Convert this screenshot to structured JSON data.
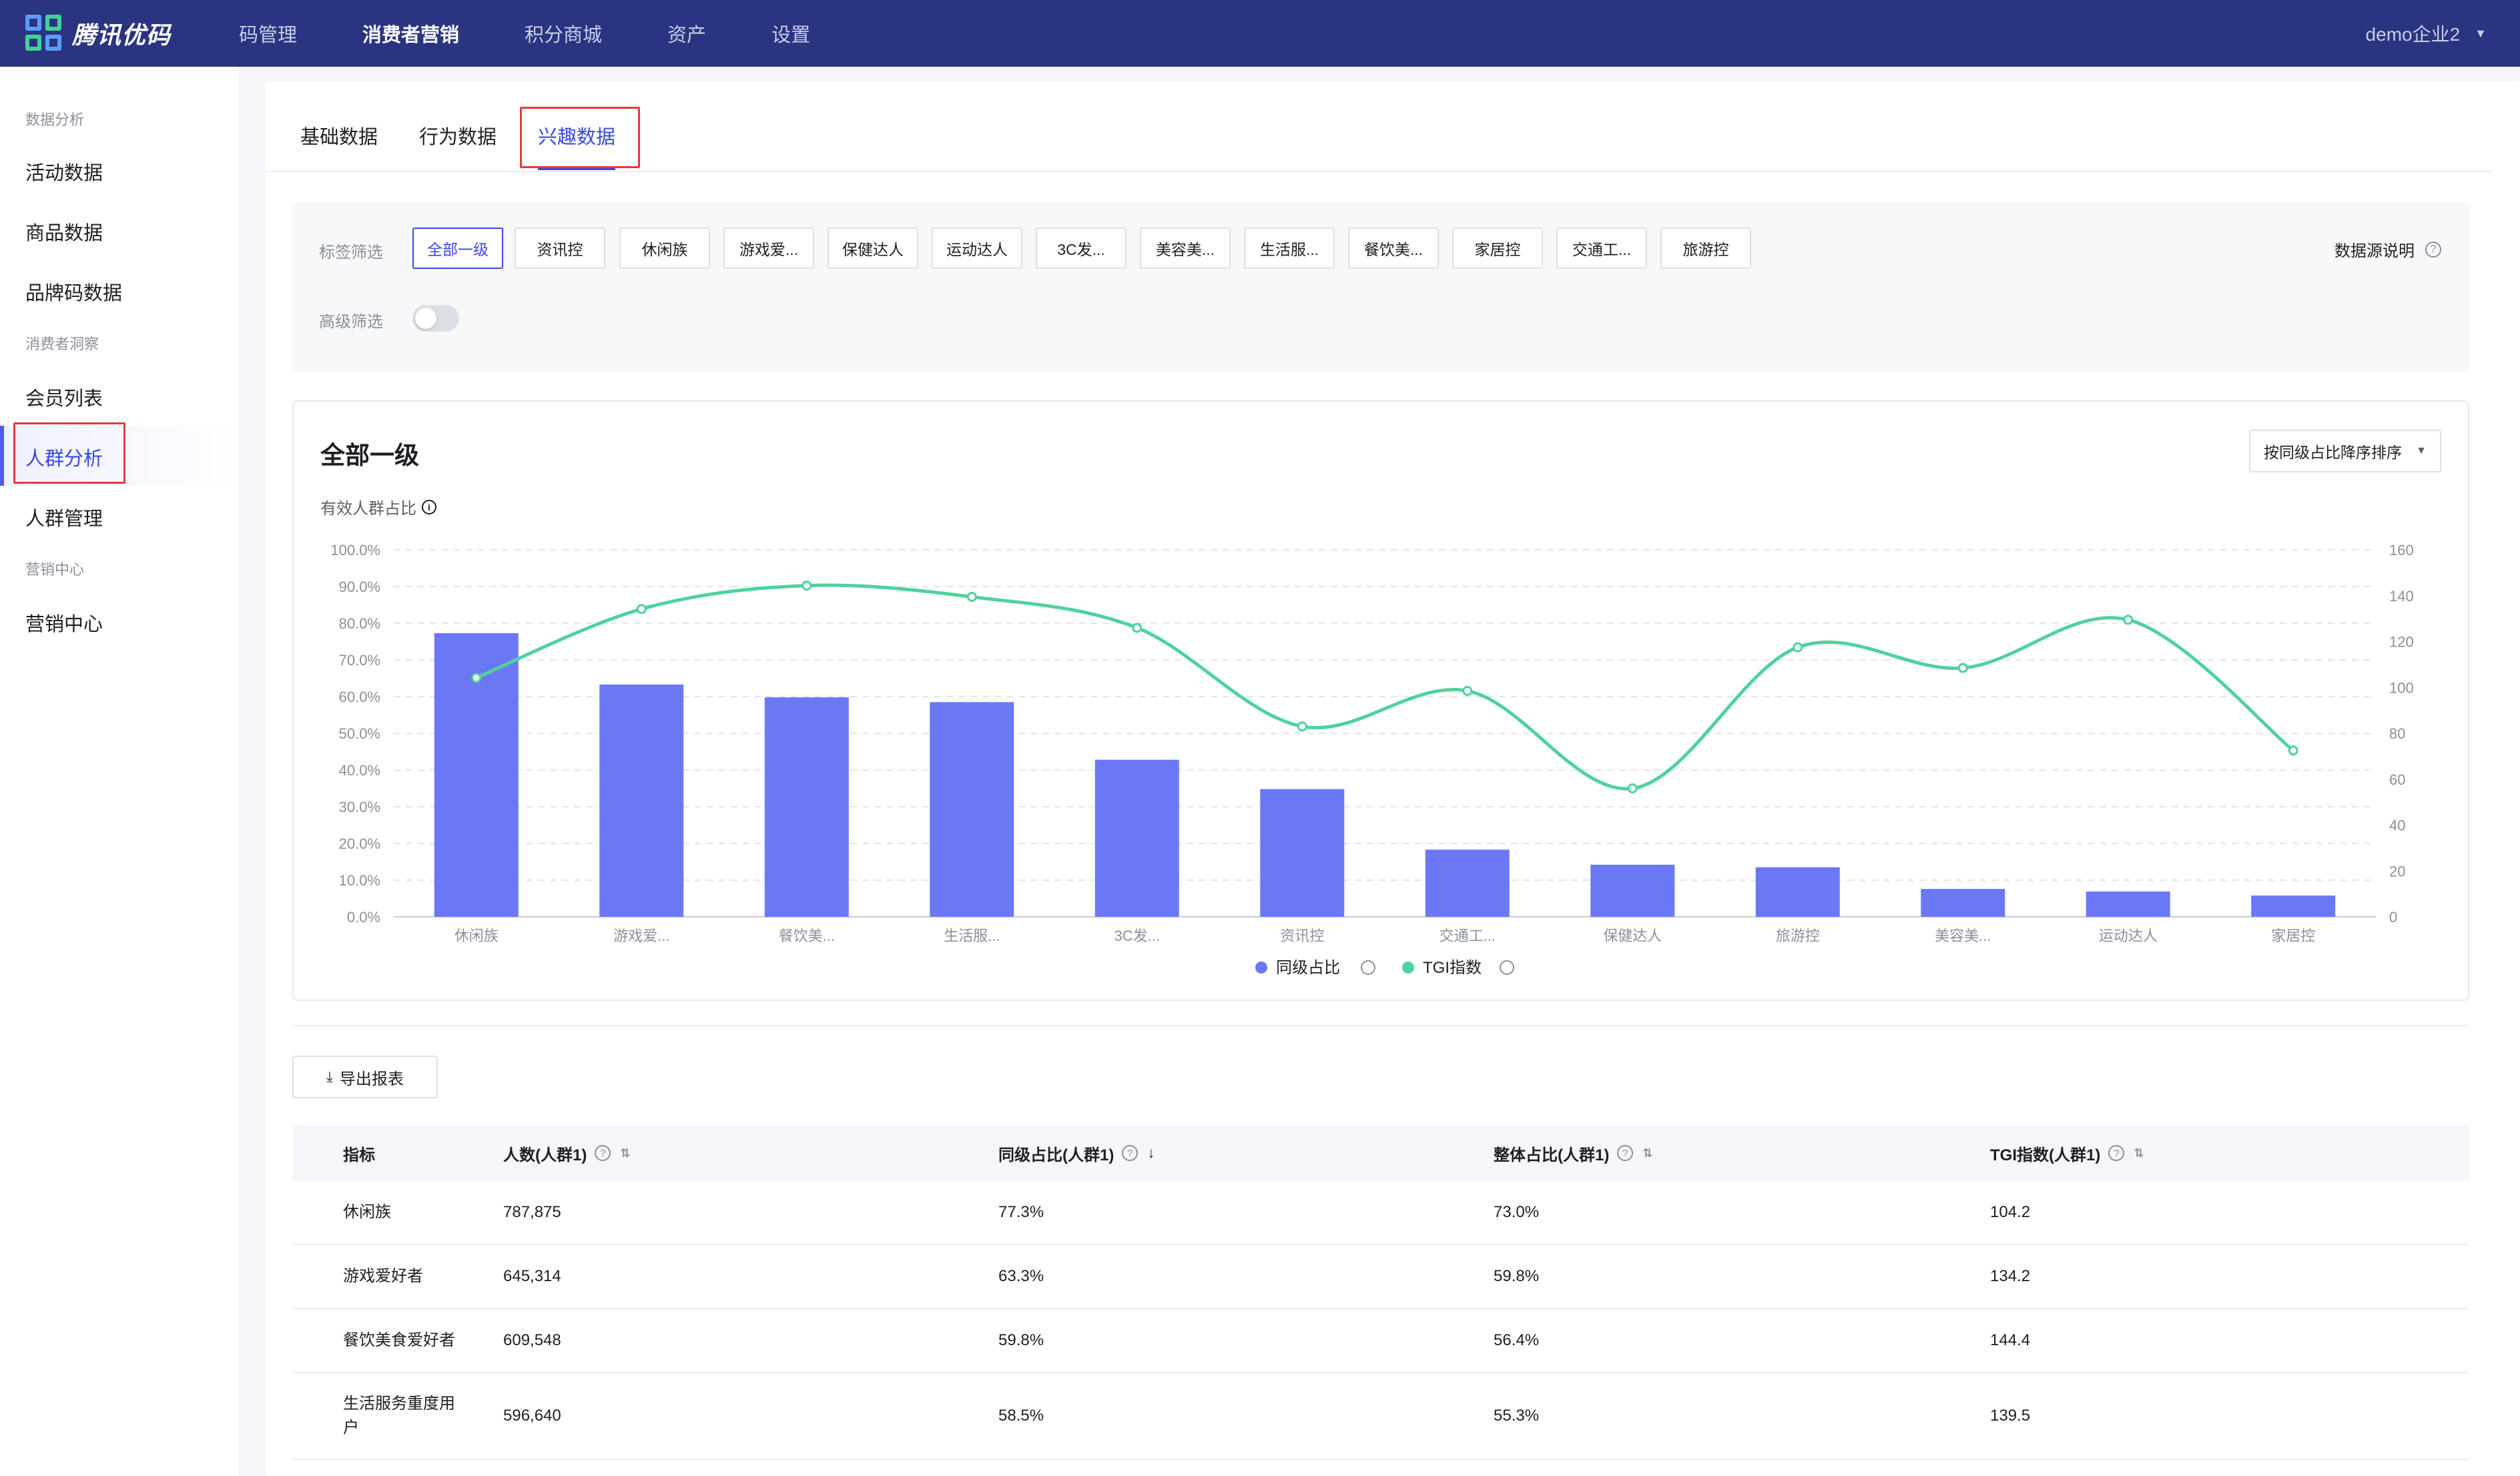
{
  "app": {
    "logo_text": "腾讯优码"
  },
  "topnav": {
    "items": [
      {
        "label": "码管理",
        "active": false
      },
      {
        "label": "消费者营销",
        "active": true
      },
      {
        "label": "积分商城",
        "active": false
      },
      {
        "label": "资产",
        "active": false
      },
      {
        "label": "设置",
        "active": false
      }
    ],
    "user": "demo企业2"
  },
  "sidebar": {
    "groups": [
      {
        "title": "数据分析",
        "items": [
          "活动数据",
          "商品数据",
          "品牌码数据"
        ]
      },
      {
        "title": "消费者洞察",
        "items": [
          "会员列表",
          "人群分析",
          "人群管理"
        ]
      },
      {
        "title": "营销中心",
        "items": [
          "营销中心"
        ]
      }
    ],
    "active_item": "人群分析"
  },
  "tabs": [
    {
      "label": "基础数据",
      "active": false
    },
    {
      "label": "行为数据",
      "active": false
    },
    {
      "label": "兴趣数据",
      "active": true
    }
  ],
  "filter": {
    "tag_label": "标签筛选",
    "chips": [
      "全部一级",
      "资讯控",
      "休闲族",
      "游戏爱...",
      "保健达人",
      "运动达人",
      "3C发...",
      "美容美...",
      "生活服...",
      "餐饮美...",
      "家居控",
      "交通工...",
      "旅游控"
    ],
    "active_chip": "全部一级",
    "advanced_label": "高级筛选",
    "advanced_on": false,
    "datasource_label": "数据源说明"
  },
  "chart_card": {
    "title": "全部一级",
    "sort_label": "按同级占比降序排序",
    "subtitle": "有效人群占比"
  },
  "chart_data": {
    "type": "bar",
    "categories": [
      "休闲族",
      "游戏爱...",
      "餐饮美...",
      "生活服...",
      "3C发...",
      "资讯控",
      "交通工...",
      "保健达人",
      "旅游控",
      "美容美...",
      "运动达人",
      "家居控"
    ],
    "series": [
      {
        "name": "同级占比",
        "type": "bar",
        "axis": "left",
        "color": "#6b78f5",
        "values": [
          77.3,
          63.3,
          59.8,
          58.5,
          42.8,
          34.8,
          18.3,
          14.2,
          13.5,
          7.6,
          6.9,
          5.8
        ]
      },
      {
        "name": "TGI指数",
        "type": "line",
        "axis": "right",
        "color": "#4fd29c",
        "values": [
          104.2,
          134.2,
          144.4,
          139.5,
          126.0,
          83.0,
          98.5,
          56.0,
          117.5,
          108.5,
          129.5,
          72.5
        ]
      }
    ],
    "y_left": {
      "ylim": [
        0,
        100
      ],
      "ticks": [
        "0.0%",
        "10.0%",
        "20.0%",
        "30.0%",
        "40.0%",
        "50.0%",
        "60.0%",
        "70.0%",
        "80.0%",
        "90.0%",
        "100.0%"
      ]
    },
    "y_right": {
      "ylim": [
        0,
        160
      ],
      "ticks": [
        "0",
        "20",
        "40",
        "60",
        "80",
        "100",
        "120",
        "140",
        "160"
      ]
    },
    "grid": true,
    "legend_position": "bottom-center"
  },
  "export_label": "导出报表",
  "table": {
    "columns": [
      {
        "label": "指标"
      },
      {
        "label": "人数(人群1)",
        "help": true,
        "sort": "both"
      },
      {
        "label": "同级占比(人群1)",
        "help": true,
        "sort": "desc"
      },
      {
        "label": "整体占比(人群1)",
        "help": true,
        "sort": "both"
      },
      {
        "label": "TGI指数(人群1)",
        "help": true,
        "sort": "both"
      }
    ],
    "rows": [
      [
        "休闲族",
        "787,875",
        "77.3%",
        "73.0%",
        "104.2"
      ],
      [
        "游戏爱好者",
        "645,314",
        "63.3%",
        "59.8%",
        "134.2"
      ],
      [
        "餐饮美食爱好者",
        "609,548",
        "59.8%",
        "56.4%",
        "144.4"
      ],
      [
        "生活服务重度用户",
        "596,640",
        "58.5%",
        "55.3%",
        "139.5"
      ]
    ]
  },
  "colors": {
    "brand": "#2b3480",
    "accent": "#3b47e6",
    "bar": "#6b78f5",
    "line": "#4fd29c",
    "highlight_box": "#e23b3b"
  }
}
